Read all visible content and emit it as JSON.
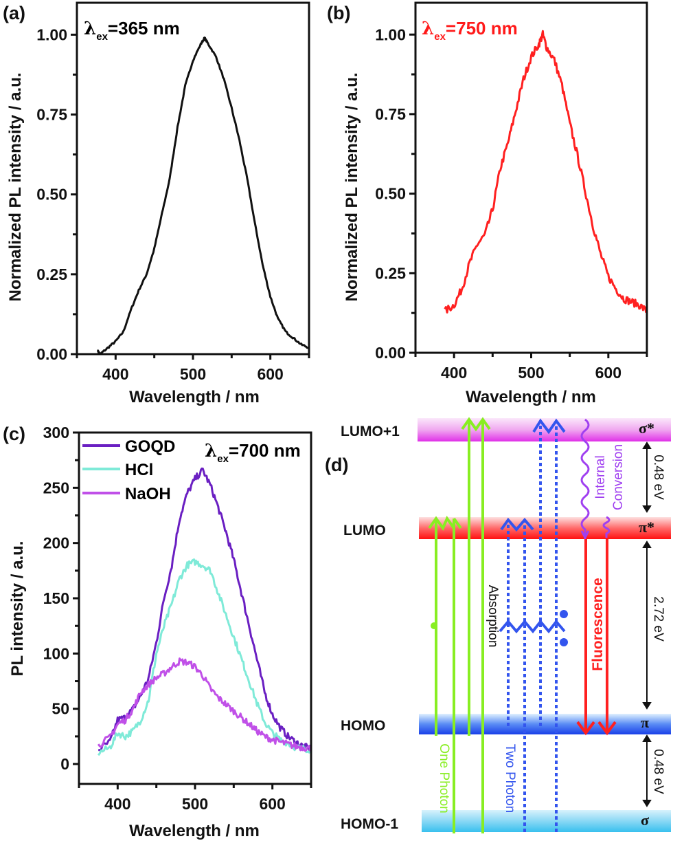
{
  "chart_data": [
    {
      "panel": "(a)",
      "type": "line",
      "annotation": {
        "symbol": "λ",
        "sub": "ex",
        "value": "=365 nm",
        "color": "#111111"
      },
      "xlabel": "Wavelength / nm",
      "ylabel": "Normalized PL intensity / a.u.",
      "xlim": [
        350,
        650
      ],
      "ylim": [
        0,
        1.1
      ],
      "xtick_labels": [
        "400",
        "500",
        "600"
      ],
      "ytick_labels": [
        "0.00",
        "0.25",
        "0.50",
        "0.75",
        "1.00"
      ],
      "series": [
        {
          "color": "#111111",
          "x": [
            377,
            380,
            390,
            400,
            410,
            420,
            430,
            440,
            450,
            460,
            470,
            480,
            490,
            500,
            510,
            515,
            520,
            530,
            540,
            550,
            560,
            570,
            580,
            590,
            600,
            610,
            620,
            630,
            640,
            650
          ],
          "y": [
            0.01,
            0.0,
            0.02,
            0.04,
            0.07,
            0.14,
            0.2,
            0.25,
            0.33,
            0.44,
            0.55,
            0.71,
            0.84,
            0.92,
            0.97,
            0.99,
            0.97,
            0.93,
            0.86,
            0.77,
            0.67,
            0.55,
            0.41,
            0.28,
            0.18,
            0.11,
            0.07,
            0.05,
            0.03,
            0.02
          ]
        }
      ]
    },
    {
      "panel": "(b)",
      "type": "line",
      "annotation": {
        "symbol": "λ",
        "sub": "ex",
        "value": "=750 nm",
        "color": "#ff1a1a"
      },
      "xlabel": "Wavelength / nm",
      "ylabel": "Normalized PL intensity / a.u.",
      "xlim": [
        350,
        650
      ],
      "ylim": [
        0,
        1.1
      ],
      "xtick_labels": [
        "400",
        "500",
        "600"
      ],
      "ytick_labels": [
        "0.00",
        "0.25",
        "0.50",
        "0.75",
        "1.00"
      ],
      "series": [
        {
          "color": "#ff2020",
          "x": [
            388,
            400,
            410,
            420,
            430,
            440,
            450,
            460,
            470,
            480,
            490,
            500,
            510,
            515,
            520,
            530,
            540,
            550,
            560,
            570,
            580,
            590,
            600,
            610,
            620,
            630,
            640,
            650
          ],
          "y": [
            0.13,
            0.15,
            0.2,
            0.28,
            0.34,
            0.37,
            0.45,
            0.58,
            0.66,
            0.76,
            0.86,
            0.93,
            0.97,
            1.0,
            0.96,
            0.92,
            0.84,
            0.72,
            0.62,
            0.51,
            0.4,
            0.31,
            0.24,
            0.2,
            0.17,
            0.16,
            0.15,
            0.13
          ]
        }
      ]
    },
    {
      "panel": "(c)",
      "type": "line",
      "annotation": {
        "symbol": "λ",
        "sub": "ex",
        "value": "=700 nm",
        "color": "#111111"
      },
      "xlabel": "Wavelength / nm",
      "ylabel": "PL intensity / a.u.",
      "xlim": [
        350,
        650
      ],
      "ylim": [
        -18,
        300
      ],
      "xtick_labels": [
        "400",
        "500",
        "600"
      ],
      "ytick_labels": [
        "0",
        "50",
        "100",
        "150",
        "200",
        "250",
        "300"
      ],
      "legend": "top-left",
      "series": [
        {
          "name": "GOQD",
          "color": "#6a1fc2",
          "x": [
            375,
            390,
            400,
            410,
            420,
            430,
            440,
            450,
            460,
            470,
            480,
            490,
            500,
            510,
            520,
            530,
            540,
            550,
            560,
            570,
            580,
            590,
            600,
            610,
            620,
            630,
            640,
            650
          ],
          "y": [
            13,
            20,
            40,
            42,
            50,
            62,
            78,
            110,
            150,
            180,
            222,
            245,
            258,
            266,
            252,
            232,
            210,
            185,
            155,
            125,
            95,
            65,
            45,
            33,
            25,
            20,
            16,
            14
          ]
        },
        {
          "name": "HCl",
          "color": "#7fead8",
          "x": [
            375,
            390,
            400,
            410,
            420,
            430,
            440,
            450,
            460,
            470,
            480,
            490,
            500,
            510,
            520,
            530,
            540,
            550,
            560,
            570,
            580,
            590,
            600,
            610,
            620,
            630,
            640,
            650
          ],
          "y": [
            10,
            15,
            28,
            25,
            30,
            40,
            58,
            100,
            125,
            145,
            168,
            180,
            183,
            180,
            175,
            155,
            135,
            115,
            95,
            75,
            55,
            38,
            28,
            22,
            19,
            15,
            14,
            13
          ]
        },
        {
          "name": "NaOH",
          "color": "#c050e8",
          "x": [
            375,
            390,
            400,
            410,
            420,
            430,
            440,
            450,
            460,
            470,
            480,
            490,
            500,
            510,
            520,
            530,
            540,
            550,
            560,
            570,
            580,
            590,
            600,
            610,
            620,
            630,
            640,
            650
          ],
          "y": [
            17,
            24,
            36,
            40,
            50,
            65,
            72,
            78,
            82,
            88,
            93,
            92,
            88,
            80,
            68,
            60,
            54,
            48,
            42,
            36,
            30,
            25,
            22,
            20,
            18,
            16,
            15,
            14
          ]
        }
      ]
    }
  ],
  "diagram": {
    "panel": "(d)",
    "levels": [
      {
        "label": "LUMO+1",
        "symbol": "σ*"
      },
      {
        "label": "LUMO",
        "symbol": "π*"
      },
      {
        "label": "HOMO",
        "symbol": "π"
      },
      {
        "label": "HOMO-1",
        "symbol": "σ"
      }
    ],
    "gaps": [
      "0.48 eV",
      "2.72 eV",
      "0.48 eV"
    ],
    "one_photon": "One Photon",
    "two_photon": "Two Photon",
    "absorption": "Absorption",
    "internal_conversion": [
      "Internal",
      "Conversion"
    ],
    "fluorescence": "Fluorescence",
    "colors": {
      "one_photon": "#88ee22",
      "two_photon": "#3355ee",
      "internal_conversion": "#a040f0",
      "fluorescence": "#ff2020"
    }
  }
}
